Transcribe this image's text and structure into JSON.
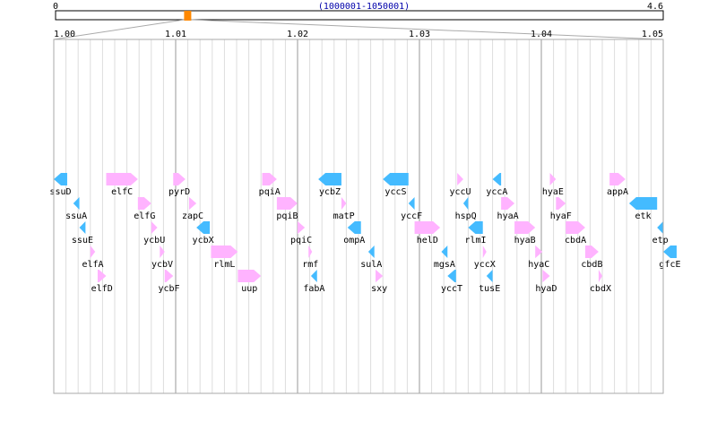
{
  "overview": {
    "left_label": "0",
    "right_label": "4.6",
    "range_label": "(1000001-1050001)",
    "marker_fraction": 0.2174
  },
  "ruler": {
    "ticks": [
      "1.00",
      "1.01",
      "1.02",
      "1.03",
      "1.04",
      "1.05"
    ]
  },
  "colors": {
    "forward": "#ffb3ff",
    "reverse": "#44bbff",
    "major_grid": "#999999",
    "minor_grid": "#dddddd",
    "range_text": "#0000aa",
    "marker": "#ff8800"
  },
  "genes": [
    {
      "name": "ssuD",
      "strand": "-",
      "start": 1.0,
      "end": 1.0011,
      "row": 1
    },
    {
      "name": "ssuA",
      "strand": "-",
      "start": 1.0016,
      "end": 1.0021,
      "row": 2
    },
    {
      "name": "ssuE",
      "strand": "-",
      "start": 1.0021,
      "end": 1.0026,
      "row": 3
    },
    {
      "name": "elfA",
      "strand": "+",
      "start": 1.003,
      "end": 1.0034,
      "row": 4
    },
    {
      "name": "elfD",
      "strand": "+",
      "start": 1.0036,
      "end": 1.0043,
      "row": 5
    },
    {
      "name": "elfC",
      "strand": "+",
      "start": 1.0043,
      "end": 1.0069,
      "row": 1
    },
    {
      "name": "elfG",
      "strand": "+",
      "start": 1.0069,
      "end": 1.008,
      "row": 2
    },
    {
      "name": "ycbU",
      "strand": "+",
      "start": 1.008,
      "end": 1.0085,
      "row": 3
    },
    {
      "name": "ycbV",
      "strand": "+",
      "start": 1.0087,
      "end": 1.0091,
      "row": 4
    },
    {
      "name": "ycbF",
      "strand": "+",
      "start": 1.0091,
      "end": 1.0098,
      "row": 5
    },
    {
      "name": "pyrD",
      "strand": "+",
      "start": 1.0098,
      "end": 1.0108,
      "row": 1
    },
    {
      "name": "zapC",
      "strand": "+",
      "start": 1.0111,
      "end": 1.0117,
      "row": 2
    },
    {
      "name": "ycbX",
      "strand": "-",
      "start": 1.0117,
      "end": 1.0128,
      "row": 3
    },
    {
      "name": "rlmL",
      "strand": "+",
      "start": 1.0129,
      "end": 1.0151,
      "row": 4
    },
    {
      "name": "uup",
      "strand": "+",
      "start": 1.0151,
      "end": 1.017,
      "row": 5
    },
    {
      "name": "pqiA",
      "strand": "+",
      "start": 1.0171,
      "end": 1.0183,
      "row": 1
    },
    {
      "name": "pqiB",
      "strand": "+",
      "start": 1.0183,
      "end": 1.02,
      "row": 2
    },
    {
      "name": "pqiC",
      "strand": "+",
      "start": 1.02,
      "end": 1.0206,
      "row": 3
    },
    {
      "name": "rmf",
      "strand": "+",
      "start": 1.0209,
      "end": 1.021,
      "row": 4
    },
    {
      "name": "fabA",
      "strand": "-",
      "start": 1.0211,
      "end": 1.0216,
      "row": 5
    },
    {
      "name": "ycbZ",
      "strand": "-",
      "start": 1.0217,
      "end": 1.0236,
      "row": 1
    },
    {
      "name": "matP",
      "strand": "+",
      "start": 1.0236,
      "end": 1.024,
      "row": 2
    },
    {
      "name": "ompA",
      "strand": "-",
      "start": 1.0241,
      "end": 1.0252,
      "row": 3
    },
    {
      "name": "sulA",
      "strand": "-",
      "start": 1.0258,
      "end": 1.0263,
      "row": 4
    },
    {
      "name": "sxy",
      "strand": "+",
      "start": 1.0264,
      "end": 1.027,
      "row": 5
    },
    {
      "name": "yccS",
      "strand": "-",
      "start": 1.027,
      "end": 1.0291,
      "row": 1
    },
    {
      "name": "yccF",
      "strand": "-",
      "start": 1.0291,
      "end": 1.0296,
      "row": 2
    },
    {
      "name": "helD",
      "strand": "+",
      "start": 1.0296,
      "end": 1.0317,
      "row": 3
    },
    {
      "name": "mgsA",
      "strand": "-",
      "start": 1.0318,
      "end": 1.0323,
      "row": 4
    },
    {
      "name": "yccT",
      "strand": "-",
      "start": 1.0323,
      "end": 1.033,
      "row": 5
    },
    {
      "name": "yccU",
      "strand": "+",
      "start": 1.0331,
      "end": 1.0336,
      "row": 1
    },
    {
      "name": "hspQ",
      "strand": "-",
      "start": 1.0336,
      "end": 1.034,
      "row": 2
    },
    {
      "name": "rlmI",
      "strand": "-",
      "start": 1.034,
      "end": 1.0352,
      "row": 3
    },
    {
      "name": "yccX",
      "strand": "+",
      "start": 1.0352,
      "end": 1.0355,
      "row": 4
    },
    {
      "name": "tusE",
      "strand": "-",
      "start": 1.0355,
      "end": 1.036,
      "row": 5
    },
    {
      "name": "yccA",
      "strand": "-",
      "start": 1.036,
      "end": 1.0367,
      "row": 1
    },
    {
      "name": "hyaA",
      "strand": "+",
      "start": 1.0367,
      "end": 1.0378,
      "row": 2
    },
    {
      "name": "hyaB",
      "strand": "+",
      "start": 1.0378,
      "end": 1.0395,
      "row": 3
    },
    {
      "name": "hyaC",
      "strand": "+",
      "start": 1.0395,
      "end": 1.0401,
      "row": 4
    },
    {
      "name": "hyaD",
      "strand": "+",
      "start": 1.0401,
      "end": 1.0407,
      "row": 5
    },
    {
      "name": "hyaE",
      "strand": "+",
      "start": 1.0407,
      "end": 1.0412,
      "row": 1
    },
    {
      "name": "hyaF",
      "strand": "+",
      "start": 1.0412,
      "end": 1.042,
      "row": 2
    },
    {
      "name": "cbdA",
      "strand": "+",
      "start": 1.042,
      "end": 1.0436,
      "row": 3
    },
    {
      "name": "cbdB",
      "strand": "+",
      "start": 1.0436,
      "end": 1.0447,
      "row": 4
    },
    {
      "name": "cbdX",
      "strand": "+",
      "start": 1.0447,
      "end": 1.045,
      "row": 5
    },
    {
      "name": "appA",
      "strand": "+",
      "start": 1.0456,
      "end": 1.0469,
      "row": 1
    },
    {
      "name": "etk",
      "strand": "-",
      "start": 1.0472,
      "end": 1.0495,
      "row": 2
    },
    {
      "name": "etp",
      "strand": "-",
      "start": 1.0495,
      "end": 1.05,
      "row": 3
    },
    {
      "name": "gfcE",
      "strand": "-",
      "start": 1.05,
      "end": 1.0511,
      "row": 4
    }
  ]
}
